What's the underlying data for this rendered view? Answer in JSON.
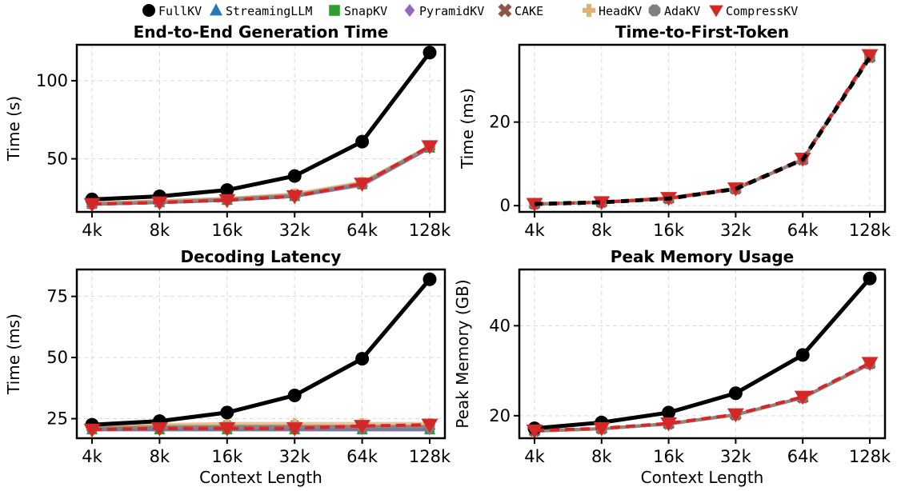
{
  "legend": [
    {
      "name": "FullKV",
      "color": "#000000",
      "marker": "circle"
    },
    {
      "name": "StreamingLLM",
      "color": "#2878b5",
      "marker": "triangle-up"
    },
    {
      "name": "SnapKV",
      "color": "#2ca02c",
      "marker": "square"
    },
    {
      "name": "PyramidKV",
      "color": "#9467bd",
      "marker": "diamond"
    },
    {
      "name": "CAKE",
      "color": "#8c564b",
      "marker": "x"
    },
    {
      "name": "HeadKV",
      "color": "#e0b27a",
      "marker": "plus"
    },
    {
      "name": "AdaKV",
      "color": "#7f7f7f",
      "marker": "octagon"
    },
    {
      "name": "CompressKV",
      "color": "#d62728",
      "marker": "triangle-down"
    }
  ],
  "chart_data": [
    {
      "type": "line",
      "title": "End-to-End Generation Time",
      "xlabel": "",
      "ylabel": "Time (s)",
      "categories": [
        "4k",
        "8k",
        "16k",
        "32k",
        "64k",
        "128k"
      ],
      "ylim": [
        16,
        123
      ],
      "yticks": [
        50,
        100
      ],
      "grid": true,
      "series": [
        {
          "name": "FullKV",
          "values": [
            24,
            26,
            30,
            39,
            61,
            118
          ]
        },
        {
          "name": "StreamingLLM",
          "values": [
            21,
            22,
            23.5,
            26,
            34,
            57
          ]
        },
        {
          "name": "SnapKV",
          "values": [
            21,
            22,
            23.5,
            26,
            33.5,
            57
          ]
        },
        {
          "name": "PyramidKV",
          "values": [
            21,
            22,
            23.5,
            26,
            33,
            57
          ]
        },
        {
          "name": "CAKE",
          "values": [
            21.5,
            23,
            24.5,
            27,
            34.5,
            58
          ]
        },
        {
          "name": "HeadKV",
          "values": [
            21.5,
            23,
            24.5,
            27.5,
            35,
            58
          ]
        },
        {
          "name": "AdaKV",
          "values": [
            21,
            22,
            24,
            26.5,
            34,
            57.5
          ]
        },
        {
          "name": "CompressKV",
          "values": [
            21,
            22,
            23.5,
            26,
            34,
            58
          ]
        }
      ]
    },
    {
      "type": "line",
      "title": "Time-to-First-Token",
      "xlabel": "",
      "ylabel": "Time (ms)",
      "categories": [
        "4k",
        "8k",
        "16k",
        "32k",
        "64k",
        "128k"
      ],
      "ylim": [
        -1.5,
        38.5
      ],
      "yticks": [
        0,
        20
      ],
      "grid": true,
      "series": [
        {
          "name": "FullKV",
          "values": [
            0.4,
            0.8,
            1.7,
            4.0,
            11.0,
            35.5
          ]
        },
        {
          "name": "StreamingLLM",
          "values": [
            0.4,
            0.8,
            1.7,
            4.0,
            11.0,
            35.5
          ]
        },
        {
          "name": "SnapKV",
          "values": [
            0.4,
            0.8,
            1.7,
            4.0,
            11.0,
            35.5
          ]
        },
        {
          "name": "PyramidKV",
          "values": [
            0.4,
            0.8,
            1.7,
            4.0,
            11.0,
            35.5
          ]
        },
        {
          "name": "CAKE",
          "values": [
            0.4,
            0.8,
            1.7,
            4.0,
            11.0,
            35.5
          ]
        },
        {
          "name": "HeadKV",
          "values": [
            0.4,
            0.8,
            1.7,
            4.0,
            11.0,
            35.5
          ]
        },
        {
          "name": "AdaKV",
          "values": [
            0.4,
            0.8,
            1.7,
            4.0,
            11.0,
            35.5
          ]
        },
        {
          "name": "CompressKV",
          "values": [
            0.4,
            0.8,
            1.8,
            4.1,
            11.2,
            36.0
          ]
        }
      ]
    },
    {
      "type": "line",
      "title": "Decoding Latency",
      "xlabel": "Context Length",
      "ylabel": "Time (ms)",
      "categories": [
        "4k",
        "8k",
        "16k",
        "32k",
        "64k",
        "128k"
      ],
      "ylim": [
        17,
        86
      ],
      "yticks": [
        25,
        50,
        75
      ],
      "grid": true,
      "series": [
        {
          "name": "FullKV",
          "values": [
            22.5,
            24,
            27.5,
            34.5,
            49.5,
            82
          ]
        },
        {
          "name": "StreamingLLM",
          "values": [
            20.5,
            20.5,
            20.5,
            20.5,
            20.5,
            20.5
          ]
        },
        {
          "name": "SnapKV",
          "values": [
            20.5,
            20.5,
            20.5,
            20.5,
            20.5,
            20.5
          ]
        },
        {
          "name": "PyramidKV",
          "values": [
            20.5,
            20.5,
            20.5,
            20.5,
            20.5,
            20.5
          ]
        },
        {
          "name": "CAKE",
          "values": [
            21.5,
            22,
            22,
            22,
            22,
            22
          ]
        },
        {
          "name": "HeadKV",
          "values": [
            22,
            22.5,
            23,
            23,
            23,
            23
          ]
        },
        {
          "name": "AdaKV",
          "values": [
            21,
            21.5,
            21.5,
            21.5,
            21.5,
            21.5
          ]
        },
        {
          "name": "CompressKV",
          "values": [
            20.5,
            21,
            21,
            21,
            22,
            22.5
          ]
        }
      ]
    },
    {
      "type": "line",
      "title": "Peak Memory Usage",
      "xlabel": "Context Length",
      "ylabel": "Peak Memory (GB)",
      "categories": [
        "4k",
        "8k",
        "16k",
        "32k",
        "64k",
        "128k"
      ],
      "ylim": [
        15,
        52.5
      ],
      "yticks": [
        20,
        40
      ],
      "grid": true,
      "series": [
        {
          "name": "FullKV",
          "values": [
            17.2,
            18.5,
            20.7,
            25,
            33.5,
            50.5
          ]
        },
        {
          "name": "StreamingLLM",
          "values": [
            16.6,
            17.1,
            18.2,
            20.2,
            24,
            31.5
          ]
        },
        {
          "name": "SnapKV",
          "values": [
            16.6,
            17.1,
            18.2,
            20.2,
            24,
            31.5
          ]
        },
        {
          "name": "PyramidKV",
          "values": [
            16.6,
            17.1,
            18.2,
            20.2,
            24,
            31.5
          ]
        },
        {
          "name": "CAKE",
          "values": [
            16.6,
            17.1,
            18.2,
            20.2,
            24,
            31.6
          ]
        },
        {
          "name": "HeadKV",
          "values": [
            16.6,
            17.1,
            18.2,
            20.2,
            24,
            31.6
          ]
        },
        {
          "name": "AdaKV",
          "values": [
            16.6,
            17.1,
            18.2,
            20.2,
            24,
            31.5
          ]
        },
        {
          "name": "CompressKV",
          "values": [
            16.7,
            17.2,
            18.3,
            20.3,
            24.2,
            31.7
          ]
        }
      ]
    }
  ]
}
